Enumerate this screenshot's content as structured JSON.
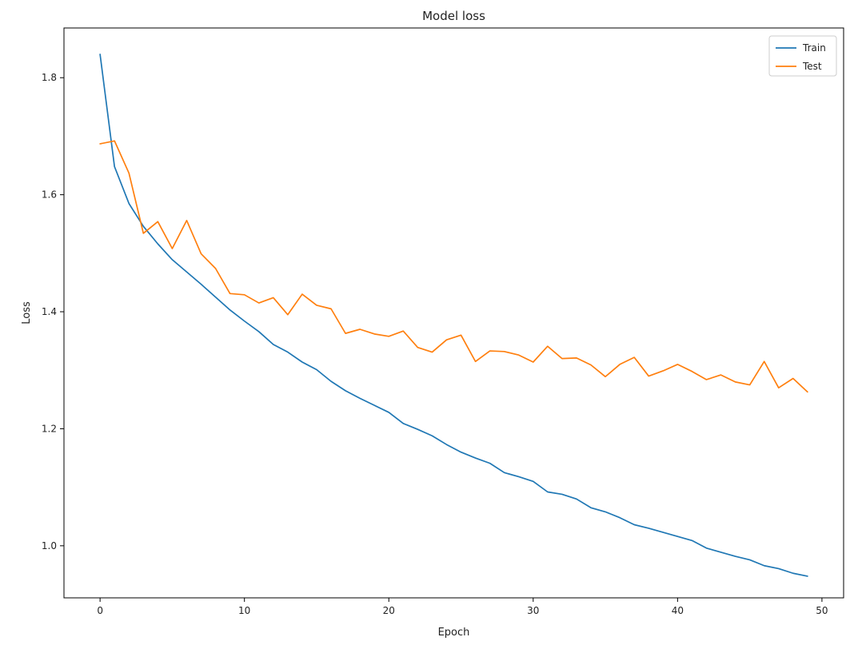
{
  "chart_data": {
    "type": "line",
    "title": "Model loss",
    "xlabel": "Epoch",
    "ylabel": "Loss",
    "xlim": [
      -2.5,
      51.5
    ],
    "ylim": [
      0.911,
      1.885
    ],
    "xticks": [
      0,
      10,
      20,
      30,
      40,
      50
    ],
    "yticks": [
      1.0,
      1.2,
      1.4,
      1.6,
      1.8
    ],
    "grid": false,
    "legend": "top-right",
    "x": [
      0,
      1,
      2,
      3,
      4,
      5,
      6,
      7,
      8,
      9,
      10,
      11,
      12,
      13,
      14,
      15,
      16,
      17,
      18,
      19,
      20,
      21,
      22,
      23,
      24,
      25,
      26,
      27,
      28,
      29,
      30,
      31,
      32,
      33,
      34,
      35,
      36,
      37,
      38,
      39,
      40,
      41,
      42,
      43,
      44,
      45,
      46,
      47,
      48,
      49
    ],
    "series": [
      {
        "name": "Train",
        "color": "#1f77b4",
        "values": [
          1.84,
          1.648,
          1.585,
          1.546,
          1.516,
          1.489,
          1.468,
          1.447,
          1.425,
          1.403,
          1.384,
          1.366,
          1.344,
          1.331,
          1.314,
          1.301,
          1.281,
          1.265,
          1.252,
          1.24,
          1.228,
          1.209,
          1.199,
          1.188,
          1.173,
          1.16,
          1.15,
          1.141,
          1.125,
          1.118,
          1.11,
          1.092,
          1.088,
          1.08,
          1.065,
          1.058,
          1.048,
          1.036,
          1.03,
          1.023,
          1.016,
          1.009,
          0.996,
          0.989,
          0.982,
          0.976,
          0.966,
          0.961,
          0.953,
          0.948
        ]
      },
      {
        "name": "Test",
        "color": "#ff7f0e",
        "values": [
          1.687,
          1.692,
          1.637,
          1.534,
          1.554,
          1.508,
          1.556,
          1.499,
          1.474,
          1.431,
          1.429,
          1.415,
          1.424,
          1.395,
          1.43,
          1.411,
          1.405,
          1.363,
          1.37,
          1.362,
          1.358,
          1.367,
          1.339,
          1.331,
          1.352,
          1.36,
          1.315,
          1.333,
          1.332,
          1.326,
          1.314,
          1.341,
          1.32,
          1.321,
          1.309,
          1.289,
          1.31,
          1.322,
          1.29,
          1.299,
          1.31,
          1.298,
          1.284,
          1.292,
          1.28,
          1.275,
          1.315,
          1.27,
          1.286,
          1.263
        ]
      }
    ]
  }
}
